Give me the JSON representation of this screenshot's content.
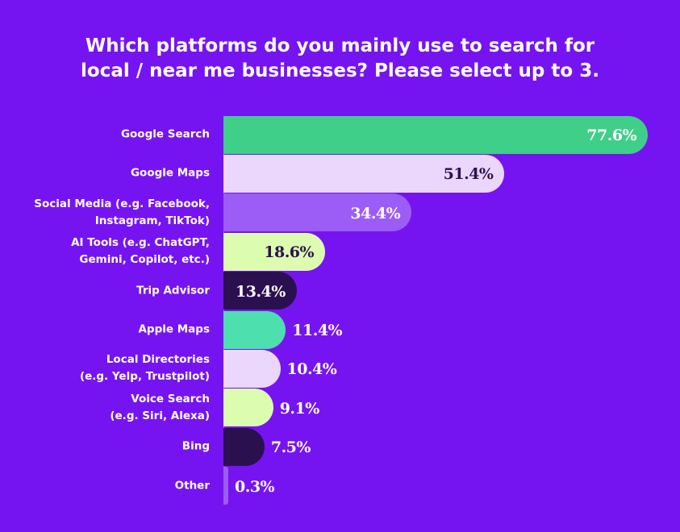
{
  "chart_data": {
    "type": "bar",
    "orientation": "horizontal",
    "title_lines": [
      "Which platforms do you mainly use to search for",
      "local / near me businesses? Please select up to 3."
    ],
    "unit": "%",
    "xlim": [
      0,
      100
    ],
    "grid": false,
    "categories": [
      [
        "Google Search"
      ],
      [
        "Google Maps"
      ],
      [
        "Social  Media (e.g. Facebook,",
        "Instagram, TikTok)"
      ],
      [
        "AI Tools (e.g. ChatGPT,",
        "Gemini, Copilot, etc.)"
      ],
      [
        "Trip Advisor"
      ],
      [
        "Apple Maps"
      ],
      [
        "Local Directories",
        "(e.g. Yelp, Trustpilot)"
      ],
      [
        "Voice Search",
        "(e.g. Siri, Alexa)"
      ],
      [
        "Bing"
      ],
      [
        "Other"
      ]
    ],
    "values": [
      77.6,
      51.4,
      34.4,
      18.6,
      13.4,
      11.4,
      10.4,
      9.1,
      7.5,
      0.3
    ],
    "value_labels": [
      "77.6%",
      "51.4%",
      "34.4%",
      "18.6%",
      "13.4%",
      "11.4%",
      "10.4%",
      "9.1%",
      "7.5%",
      "0.3%"
    ],
    "bar_colors": [
      "#3fcf88",
      "#ebd7fb",
      "#9c5cf6",
      "#dcfcaf",
      "#2b1050",
      "#4edfae",
      "#ebd7fb",
      "#dcfcaf",
      "#2b1050",
      "#9c5cf6"
    ],
    "value_label_colors": [
      "#ffffff",
      "#2b1050",
      "#ffffff",
      "#2b1050",
      "#ffffff",
      "#ffffff",
      "#ffffff",
      "#ffffff",
      "#ffffff",
      "#ffffff"
    ],
    "value_label_position": [
      "inside",
      "inside",
      "inside",
      "inside",
      "inside",
      "outside",
      "outside",
      "outside",
      "outside",
      "outside"
    ]
  },
  "colors": {
    "background": "#7614f1",
    "axis": "#9a5cf6"
  }
}
